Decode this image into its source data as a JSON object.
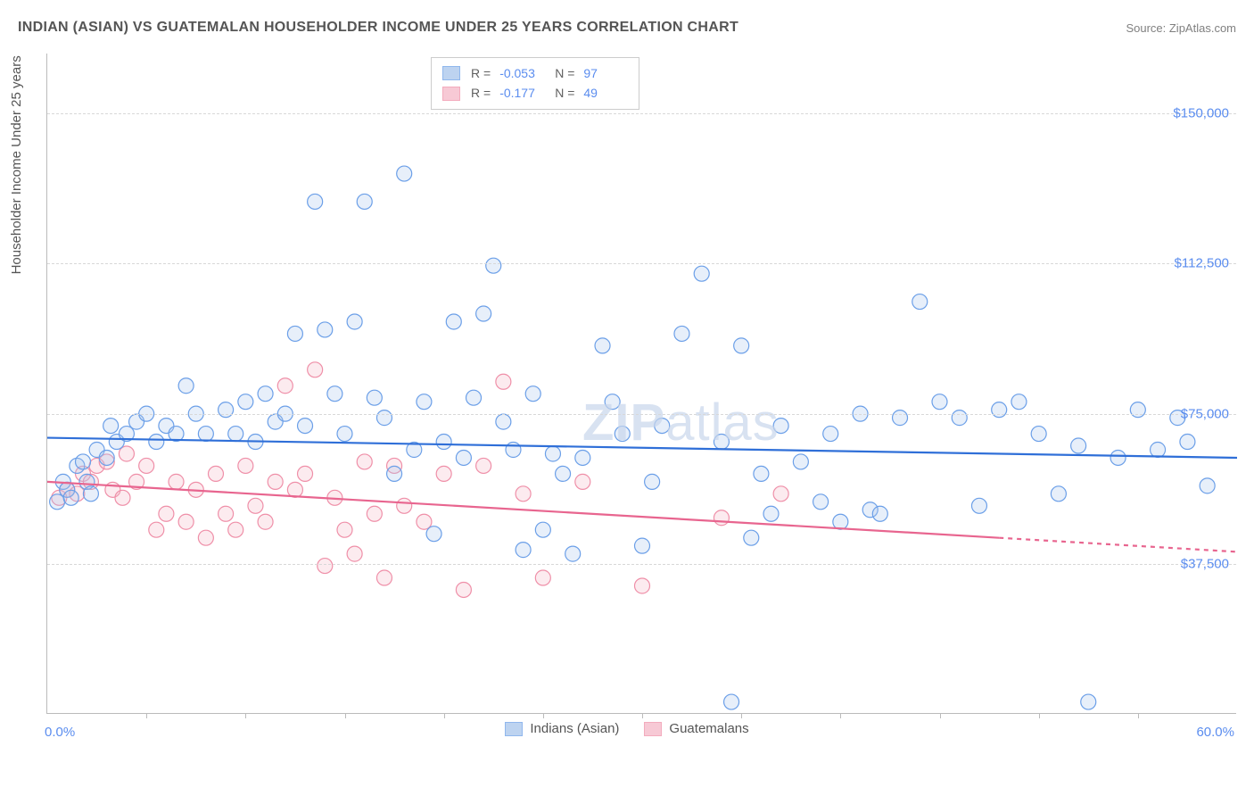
{
  "title": "INDIAN (ASIAN) VS GUATEMALAN HOUSEHOLDER INCOME UNDER 25 YEARS CORRELATION CHART",
  "source": "Source: ZipAtlas.com",
  "watermark_a": "ZIP",
  "watermark_b": "atlas",
  "chart": {
    "type": "scatter",
    "y_axis_title": "Householder Income Under 25 years",
    "xlim": [
      0,
      60
    ],
    "ylim": [
      0,
      165000
    ],
    "x_min_label": "0.0%",
    "x_max_label": "60.0%",
    "y_ticks": [
      37500,
      75000,
      112500,
      150000
    ],
    "y_tick_labels": [
      "$37,500",
      "$75,000",
      "$112,500",
      "$150,000"
    ],
    "x_ticks": [
      5,
      10,
      15,
      20,
      25,
      30,
      35,
      40,
      45,
      50,
      55
    ],
    "grid_color": "#d8d8d8",
    "background_color": "#ffffff",
    "axis_color": "#bbbbbb",
    "tick_label_color": "#5b8def",
    "marker_radius": 8.5,
    "marker_stroke_width": 1.2,
    "marker_fill_opacity": 0.28,
    "trend_line_width": 2.2,
    "series": [
      {
        "name": "Indians (Asian)",
        "stroke": "#6b9fe8",
        "fill": "#a8c5ec",
        "line_color": "#2f6fd8",
        "R": "-0.053",
        "N": "97",
        "trend": {
          "x1": 0,
          "y1": 69000,
          "x2": 60,
          "y2": 64000
        },
        "points": [
          [
            0.5,
            53000
          ],
          [
            0.8,
            58000
          ],
          [
            1.0,
            56000
          ],
          [
            1.2,
            54000
          ],
          [
            1.5,
            62000
          ],
          [
            1.8,
            63000
          ],
          [
            2.0,
            58000
          ],
          [
            2.2,
            55000
          ],
          [
            2.5,
            66000
          ],
          [
            3.0,
            64000
          ],
          [
            3.2,
            72000
          ],
          [
            3.5,
            68000
          ],
          [
            4.0,
            70000
          ],
          [
            4.5,
            73000
          ],
          [
            5.0,
            75000
          ],
          [
            5.5,
            68000
          ],
          [
            6.0,
            72000
          ],
          [
            6.5,
            70000
          ],
          [
            7.0,
            82000
          ],
          [
            7.5,
            75000
          ],
          [
            8.0,
            70000
          ],
          [
            9.0,
            76000
          ],
          [
            9.5,
            70000
          ],
          [
            10.0,
            78000
          ],
          [
            10.5,
            68000
          ],
          [
            11.0,
            80000
          ],
          [
            11.5,
            73000
          ],
          [
            12.0,
            75000
          ],
          [
            12.5,
            95000
          ],
          [
            13.0,
            72000
          ],
          [
            13.5,
            128000
          ],
          [
            14.0,
            96000
          ],
          [
            14.5,
            80000
          ],
          [
            15.0,
            70000
          ],
          [
            15.5,
            98000
          ],
          [
            16.0,
            128000
          ],
          [
            16.5,
            79000
          ],
          [
            17.0,
            74000
          ],
          [
            17.5,
            60000
          ],
          [
            18.0,
            135000
          ],
          [
            18.5,
            66000
          ],
          [
            19.0,
            78000
          ],
          [
            19.5,
            45000
          ],
          [
            20.0,
            68000
          ],
          [
            20.5,
            98000
          ],
          [
            21.0,
            64000
          ],
          [
            21.5,
            79000
          ],
          [
            22.0,
            100000
          ],
          [
            22.5,
            112000
          ],
          [
            23.0,
            73000
          ],
          [
            23.5,
            66000
          ],
          [
            24.0,
            41000
          ],
          [
            24.5,
            80000
          ],
          [
            25.0,
            46000
          ],
          [
            25.5,
            65000
          ],
          [
            26.0,
            60000
          ],
          [
            26.5,
            40000
          ],
          [
            27.0,
            64000
          ],
          [
            28.0,
            92000
          ],
          [
            28.5,
            78000
          ],
          [
            29.0,
            70000
          ],
          [
            30.0,
            42000
          ],
          [
            30.5,
            58000
          ],
          [
            31.0,
            72000
          ],
          [
            32.0,
            95000
          ],
          [
            33.0,
            110000
          ],
          [
            34.0,
            68000
          ],
          [
            34.5,
            3000
          ],
          [
            35.0,
            92000
          ],
          [
            35.5,
            44000
          ],
          [
            36.0,
            60000
          ],
          [
            36.5,
            50000
          ],
          [
            37.0,
            72000
          ],
          [
            38.0,
            63000
          ],
          [
            39.0,
            53000
          ],
          [
            39.5,
            70000
          ],
          [
            40.0,
            48000
          ],
          [
            41.0,
            75000
          ],
          [
            41.5,
            51000
          ],
          [
            42.0,
            50000
          ],
          [
            43.0,
            74000
          ],
          [
            44.0,
            103000
          ],
          [
            45.0,
            78000
          ],
          [
            46.0,
            74000
          ],
          [
            47.0,
            52000
          ],
          [
            48.0,
            76000
          ],
          [
            49.0,
            78000
          ],
          [
            50.0,
            70000
          ],
          [
            51.0,
            55000
          ],
          [
            52.0,
            67000
          ],
          [
            52.5,
            3000
          ],
          [
            54.0,
            64000
          ],
          [
            55.0,
            76000
          ],
          [
            56.0,
            66000
          ],
          [
            57.0,
            74000
          ],
          [
            57.5,
            68000
          ],
          [
            58.5,
            57000
          ]
        ]
      },
      {
        "name": "Guatemalans",
        "stroke": "#ef8fa8",
        "fill": "#f5b8c7",
        "line_color": "#e8658f",
        "R": "-0.177",
        "N": "49",
        "trend": {
          "x1": 0,
          "y1": 58000,
          "x2": 48,
          "y2": 44000
        },
        "trend_dashed": {
          "x1": 48,
          "y1": 44000,
          "x2": 60,
          "y2": 40500
        },
        "points": [
          [
            0.6,
            54000
          ],
          [
            1.0,
            56000
          ],
          [
            1.5,
            55000
          ],
          [
            1.8,
            60000
          ],
          [
            2.2,
            58000
          ],
          [
            2.5,
            62000
          ],
          [
            3.0,
            63000
          ],
          [
            3.3,
            56000
          ],
          [
            3.8,
            54000
          ],
          [
            4.0,
            65000
          ],
          [
            4.5,
            58000
          ],
          [
            5.0,
            62000
          ],
          [
            5.5,
            46000
          ],
          [
            6.0,
            50000
          ],
          [
            6.5,
            58000
          ],
          [
            7.0,
            48000
          ],
          [
            7.5,
            56000
          ],
          [
            8.0,
            44000
          ],
          [
            8.5,
            60000
          ],
          [
            9.0,
            50000
          ],
          [
            9.5,
            46000
          ],
          [
            10.0,
            62000
          ],
          [
            10.5,
            52000
          ],
          [
            11.0,
            48000
          ],
          [
            11.5,
            58000
          ],
          [
            12.0,
            82000
          ],
          [
            12.5,
            56000
          ],
          [
            13.0,
            60000
          ],
          [
            13.5,
            86000
          ],
          [
            14.0,
            37000
          ],
          [
            14.5,
            54000
          ],
          [
            15.0,
            46000
          ],
          [
            15.5,
            40000
          ],
          [
            16.0,
            63000
          ],
          [
            16.5,
            50000
          ],
          [
            17.0,
            34000
          ],
          [
            17.5,
            62000
          ],
          [
            18.0,
            52000
          ],
          [
            19.0,
            48000
          ],
          [
            20.0,
            60000
          ],
          [
            21.0,
            31000
          ],
          [
            22.0,
            62000
          ],
          [
            23.0,
            83000
          ],
          [
            24.0,
            55000
          ],
          [
            25.0,
            34000
          ],
          [
            27.0,
            58000
          ],
          [
            30.0,
            32000
          ],
          [
            34.0,
            49000
          ],
          [
            37.0,
            55000
          ]
        ]
      }
    ]
  },
  "legend_bottom": [
    {
      "label": "Indians (Asian)",
      "fill": "#a8c5ec",
      "stroke": "#6b9fe8"
    },
    {
      "label": "Guatemalans",
      "fill": "#f5b8c7",
      "stroke": "#ef8fa8"
    }
  ]
}
